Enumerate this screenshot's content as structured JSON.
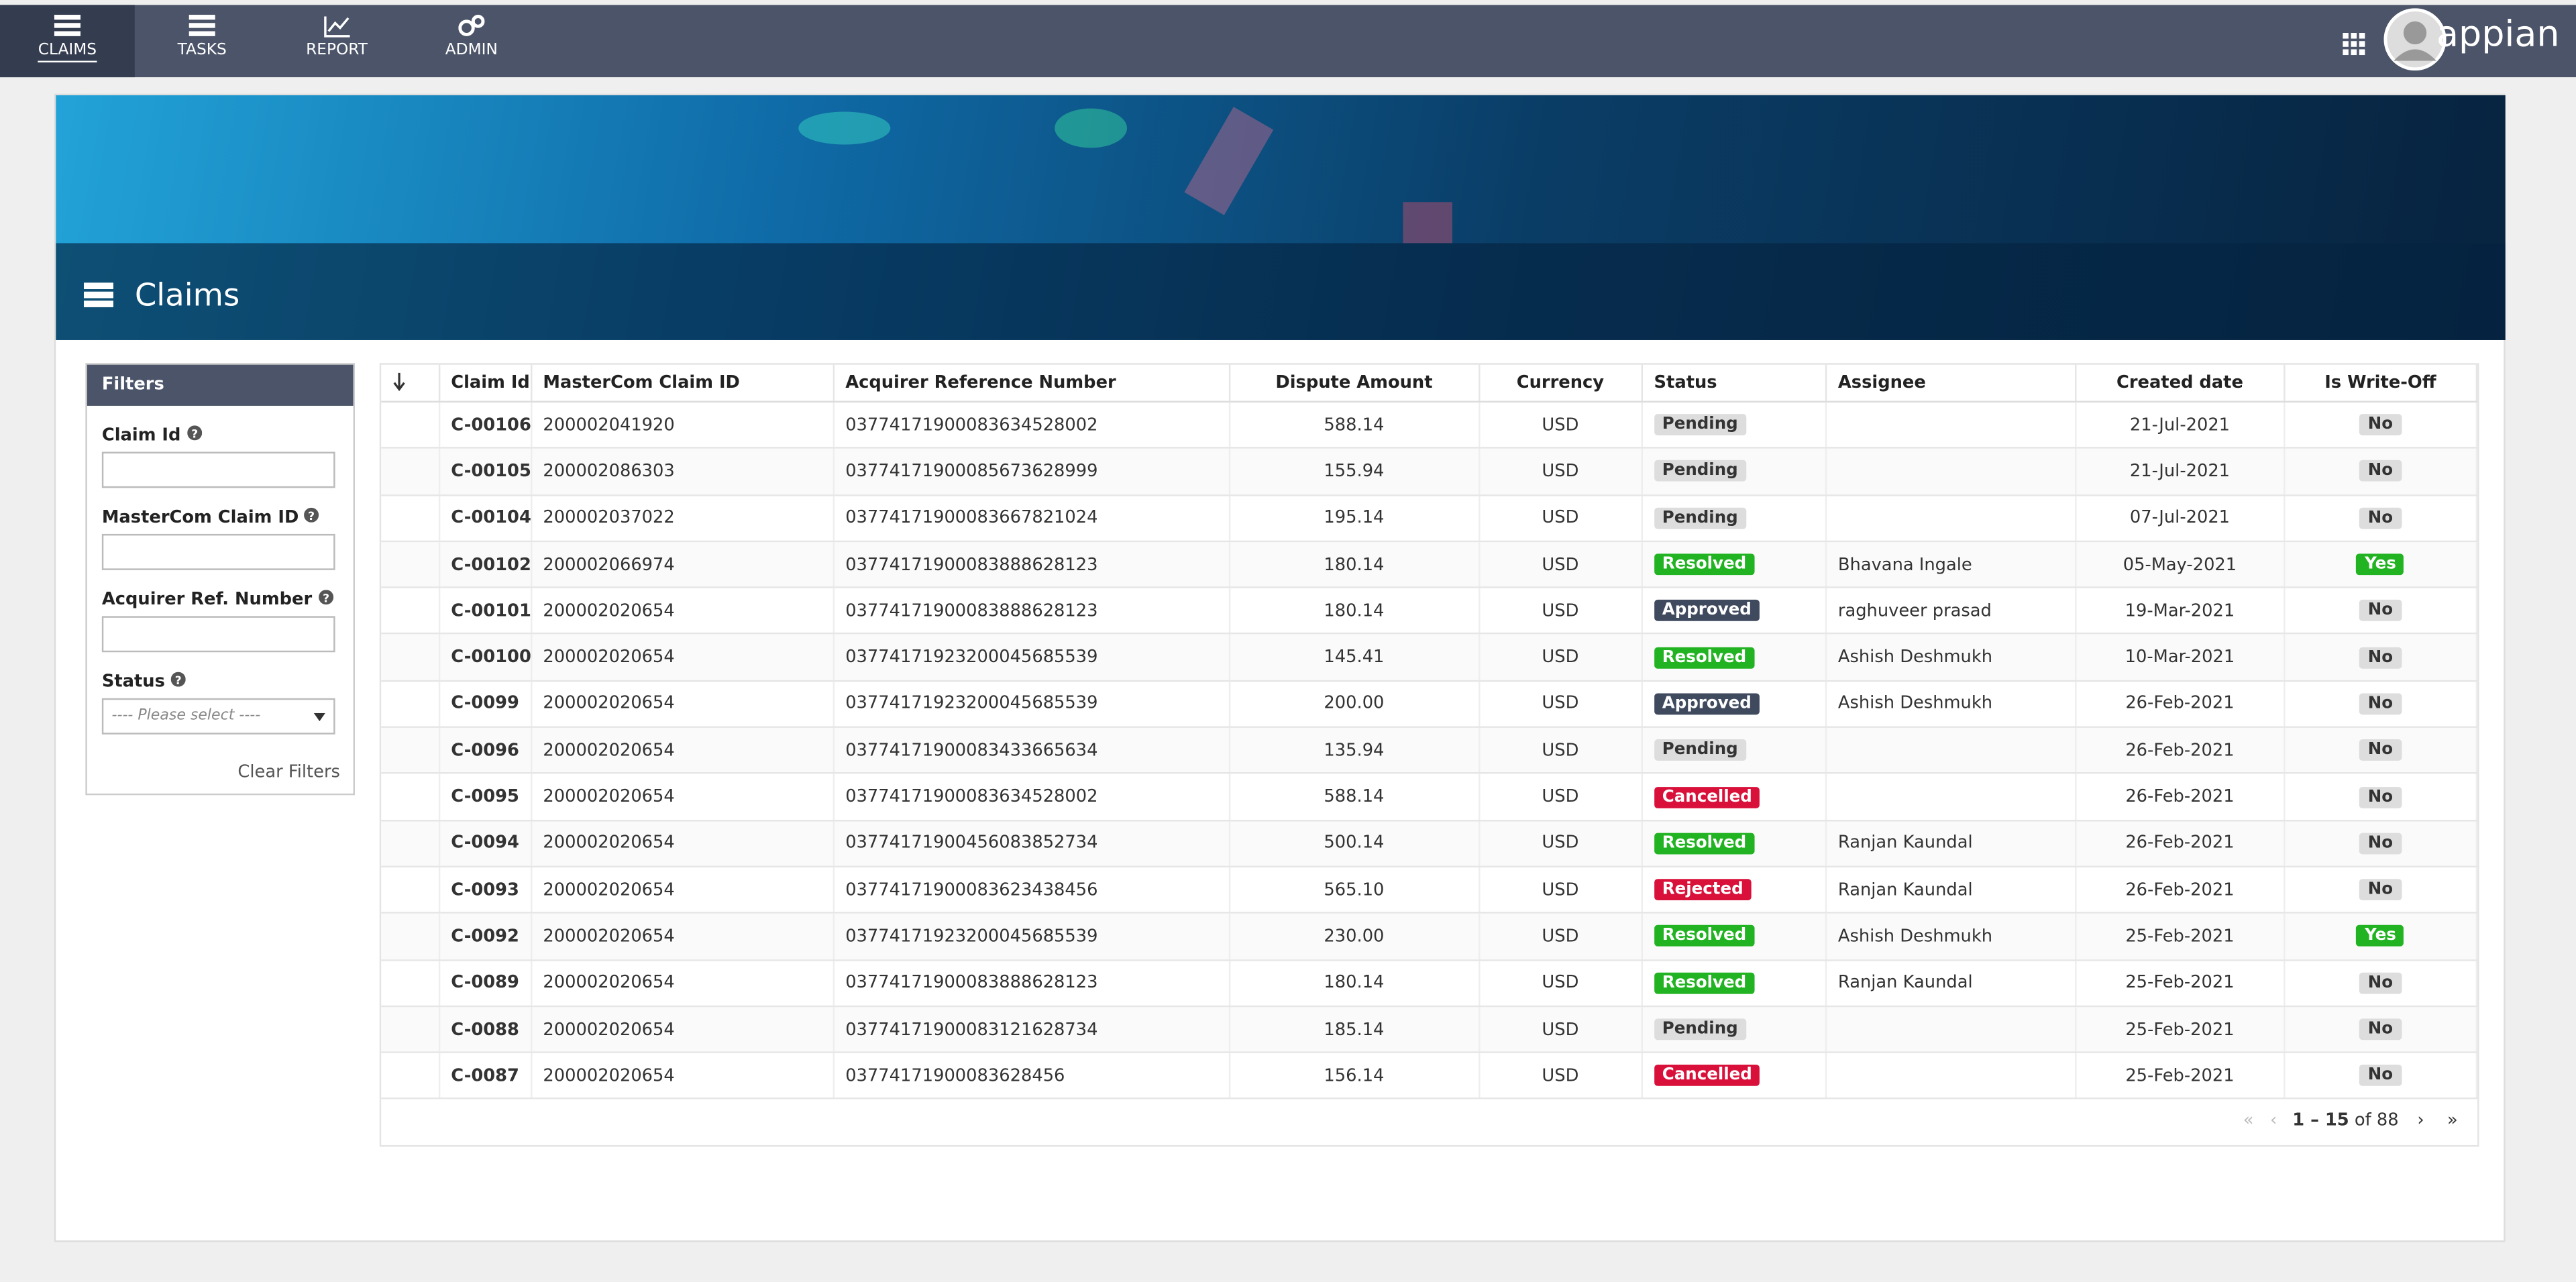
{
  "nav": {
    "items": [
      "CLAIMS",
      "TASKS",
      "REPORT",
      "ADMIN"
    ],
    "brand": "appian"
  },
  "page": {
    "title": "Claims"
  },
  "filters": {
    "title": "Filters",
    "fields": [
      "Claim Id",
      "MasterCom Claim ID",
      "Acquirer Ref. Number",
      "Status"
    ],
    "status_placeholder": "---- Please select ----",
    "clear": "Clear Filters"
  },
  "table": {
    "headers": [
      "Claim Id",
      "MasterCom Claim ID",
      "Acquirer Reference Number",
      "Dispute Amount",
      "Currency",
      "Status",
      "Assignee",
      "Created date",
      "Is Write-Off"
    ],
    "rows": [
      [
        "C-00106",
        "200002041920",
        "03774171900083634528002",
        "588.14",
        "USD",
        "Pending",
        null,
        "21-Jul-2021",
        "No"
      ],
      [
        "C-00105",
        "200002086303",
        "03774171900085673628999",
        "155.94",
        "USD",
        "Pending",
        null,
        "21-Jul-2021",
        "No"
      ],
      [
        "C-00104",
        "200002037022",
        "03774171900083667821024",
        "195.14",
        "USD",
        "Pending",
        null,
        "07-Jul-2021",
        "No"
      ],
      [
        "C-00102",
        "200002066974",
        "03774171900083888628123",
        "180.14",
        "USD",
        "Resolved",
        "Bhavana Ingale",
        "05-May-2021",
        "Yes"
      ],
      [
        "C-00101",
        "200002020654",
        "03774171900083888628123",
        "180.14",
        "USD",
        "Approved",
        "raghuveer prasad",
        "19-Mar-2021",
        "No"
      ],
      [
        "C-00100",
        "200002020654",
        "03774171923200045685539",
        "145.41",
        "USD",
        "Resolved",
        "Ashish Deshmukh",
        "10-Mar-2021",
        "No"
      ],
      [
        "C-0099",
        "200002020654",
        "03774171923200045685539",
        "200.00",
        "USD",
        "Approved",
        "Ashish Deshmukh",
        "26-Feb-2021",
        "No"
      ],
      [
        "C-0096",
        "200002020654",
        "03774171900083433665634",
        "135.94",
        "USD",
        "Pending",
        null,
        "26-Feb-2021",
        "No"
      ],
      [
        "C-0095",
        "200002020654",
        "03774171900083634528002",
        "588.14",
        "USD",
        "Cancelled",
        null,
        "26-Feb-2021",
        "No"
      ],
      [
        "C-0094",
        "200002020654",
        "03774171900456083852734",
        "500.14",
        "USD",
        "Resolved",
        "Ranjan Kaundal",
        "26-Feb-2021",
        "No"
      ],
      [
        "C-0093",
        "200002020654",
        "03774171900083623438456",
        "565.10",
        "USD",
        "Rejected",
        "Ranjan Kaundal",
        "26-Feb-2021",
        "No"
      ],
      [
        "C-0092",
        "200002020654",
        "03774171923200045685539",
        "230.00",
        "USD",
        "Resolved",
        "Ashish Deshmukh",
        "25-Feb-2021",
        "Yes"
      ],
      [
        "C-0089",
        "200002020654",
        "03774171900083888628123",
        "180.14",
        "USD",
        "Resolved",
        "Ranjan Kaundal",
        "25-Feb-2021",
        "No"
      ],
      [
        "C-0088",
        "200002020654",
        "03774171900083121628734",
        "185.14",
        "USD",
        "Pending",
        null,
        "25-Feb-2021",
        "No"
      ],
      [
        "C-0087",
        "200002020654",
        "03774171900083628456",
        "156.14",
        "USD",
        "Cancelled",
        null,
        "25-Feb-2021",
        "No"
      ]
    ]
  },
  "pagination": {
    "range": "1 – 15",
    "total": "of 88"
  }
}
